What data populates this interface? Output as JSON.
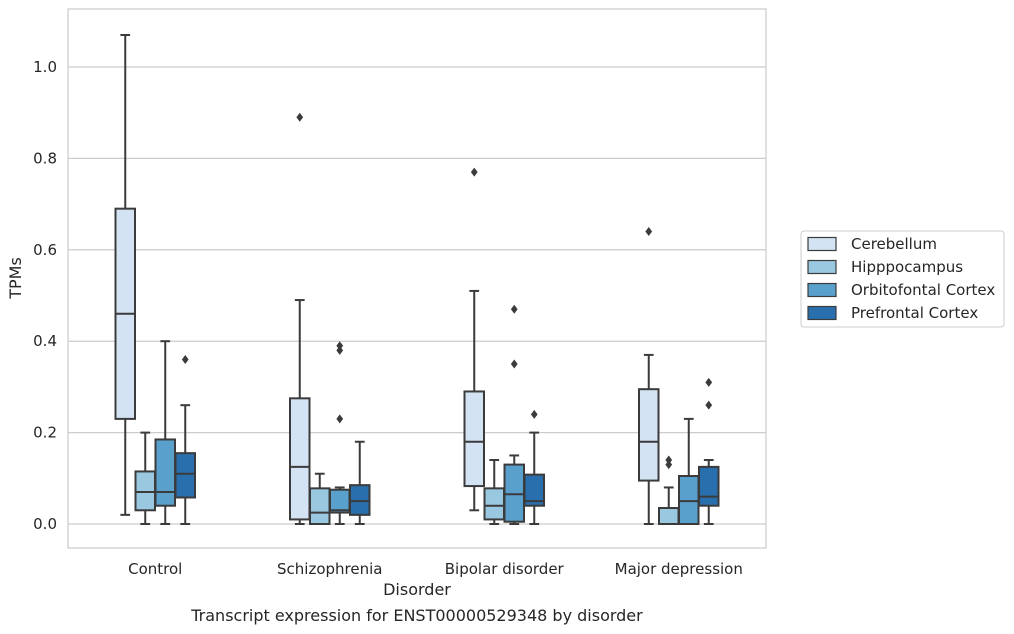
{
  "chart_data": {
    "type": "box",
    "caption": "Transcript expression for ENST00000529348 by disorder",
    "xlabel": "Disorder",
    "ylabel": "TPMs",
    "ylim": [
      -0.05,
      1.13
    ],
    "yticks": [
      0.0,
      0.2,
      0.4,
      0.6,
      0.8,
      1.0
    ],
    "ytick_labels": [
      "0.0",
      "0.2",
      "0.4",
      "0.6",
      "0.8",
      "1.0"
    ],
    "grid": "horizontal",
    "legend_position": "right",
    "categories": [
      "Control",
      "Schizophrenia",
      "Bipolar disorder",
      "Major depression"
    ],
    "series": [
      {
        "name": "Cerebellum",
        "color": "#d3e3f3",
        "boxes": [
          {
            "whislo": 0.02,
            "q1": 0.23,
            "med": 0.46,
            "q3": 0.69,
            "whishi": 1.07,
            "fliers": []
          },
          {
            "whislo": 0.0,
            "q1": 0.01,
            "med": 0.125,
            "q3": 0.275,
            "whishi": 0.49,
            "fliers": [
              0.89
            ]
          },
          {
            "whislo": 0.03,
            "q1": 0.083,
            "med": 0.18,
            "q3": 0.29,
            "whishi": 0.51,
            "fliers": [
              0.77
            ]
          },
          {
            "whislo": 0.0,
            "q1": 0.095,
            "med": 0.18,
            "q3": 0.295,
            "whishi": 0.37,
            "fliers": [
              0.64
            ]
          }
        ]
      },
      {
        "name": "Hipppocampus",
        "color": "#9ac8e0",
        "boxes": [
          {
            "whislo": 0.0,
            "q1": 0.03,
            "med": 0.07,
            "q3": 0.115,
            "whishi": 0.2,
            "fliers": []
          },
          {
            "whislo": 0.0,
            "q1": 0.0,
            "med": 0.025,
            "q3": 0.078,
            "whishi": 0.11,
            "fliers": []
          },
          {
            "whislo": 0.0,
            "q1": 0.01,
            "med": 0.04,
            "q3": 0.078,
            "whishi": 0.14,
            "fliers": []
          },
          {
            "whislo": 0.0,
            "q1": 0.0,
            "med": 0.0,
            "q3": 0.035,
            "whishi": 0.08,
            "fliers": [
              0.13,
              0.14
            ]
          }
        ]
      },
      {
        "name": "Orbitofontal Cortex",
        "color": "#5aa0cd",
        "boxes": [
          {
            "whislo": 0.0,
            "q1": 0.04,
            "med": 0.07,
            "q3": 0.185,
            "whishi": 0.4,
            "fliers": []
          },
          {
            "whislo": 0.0,
            "q1": 0.025,
            "med": 0.03,
            "q3": 0.075,
            "whishi": 0.08,
            "fliers": [
              0.23,
              0.38,
              0.39
            ]
          },
          {
            "whislo": 0.0,
            "q1": 0.005,
            "med": 0.065,
            "q3": 0.13,
            "whishi": 0.15,
            "fliers": [
              0.35,
              0.47
            ]
          },
          {
            "whislo": 0.0,
            "q1": 0.0,
            "med": 0.05,
            "q3": 0.105,
            "whishi": 0.23,
            "fliers": []
          }
        ]
      },
      {
        "name": "Prefrontal Cortex",
        "color": "#2a6fad",
        "boxes": [
          {
            "whislo": 0.0,
            "q1": 0.058,
            "med": 0.11,
            "q3": 0.155,
            "whishi": 0.26,
            "fliers": [
              0.36
            ]
          },
          {
            "whislo": 0.0,
            "q1": 0.02,
            "med": 0.05,
            "q3": 0.085,
            "whishi": 0.18,
            "fliers": []
          },
          {
            "whislo": 0.0,
            "q1": 0.04,
            "med": 0.05,
            "q3": 0.108,
            "whishi": 0.2,
            "fliers": [
              0.24
            ]
          },
          {
            "whislo": 0.0,
            "q1": 0.04,
            "med": 0.06,
            "q3": 0.125,
            "whishi": 0.14,
            "fliers": [
              0.26,
              0.31
            ]
          }
        ]
      }
    ]
  }
}
